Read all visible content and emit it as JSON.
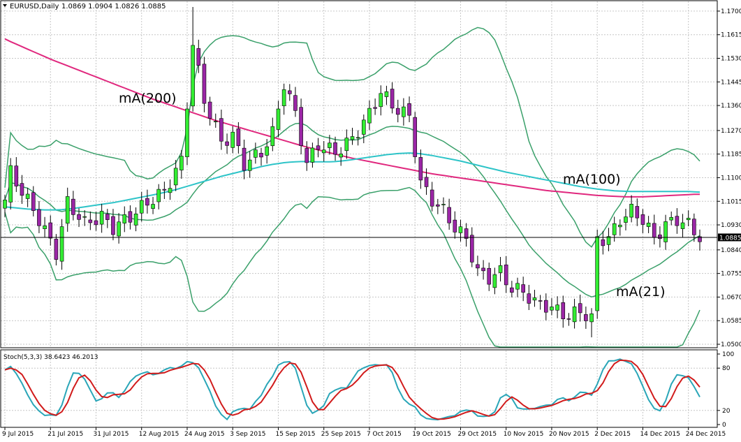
{
  "chart_header": {
    "symbol_label": "EURUSD,Daily",
    "ohlc_text": "1.0869 1.0904 1.0826 1.0885"
  },
  "colors": {
    "background": "#ffffff",
    "grid": "#c6c6c6",
    "bull_candle": "#33ee33",
    "bear_candle": "#9b26a6",
    "wick": "#000000",
    "bollinger": "#3aa06a",
    "ma100": "#2ec4c8",
    "ma200": "#e0287e",
    "stoch_main": "#2aa6b8",
    "stoch_signal": "#d11b1b",
    "current_price_line": "#000000"
  },
  "chart_data": {
    "type": "candlestick",
    "instrument": "EURUSD",
    "timeframe": "Daily",
    "price_axis_ticks": [
      1.17,
      1.1615,
      1.153,
      1.1445,
      1.136,
      1.127,
      1.1185,
      1.11,
      1.1015,
      1.093,
      1.084,
      1.0755,
      1.067,
      1.0585,
      1.05
    ],
    "price_tick_labels": [
      "1.1700",
      "1.1615",
      "1.1530",
      "1.1445",
      "1.1360",
      "1.1270",
      "1.1185",
      "1.1100",
      "1.1015",
      "1.0930",
      "1.0840",
      "1.0755",
      "1.0670",
      "1.0585",
      "1.0500"
    ],
    "ylim": [
      1.049,
      1.1735
    ],
    "current_price": 1.0885,
    "current_price_label": "1.0885",
    "date_labels": [
      "9 Jul 2015",
      "21 Jul 2015",
      "31 Jul 2015",
      "12 Aug 2015",
      "24 Aug 2015",
      "3 Sep 2015",
      "15 Sep 2015",
      "25 Sep 2015",
      "7 Oct 2015",
      "19 Oct 2015",
      "29 Oct 2015",
      "10 Nov 2015",
      "20 Nov 2015",
      "2 Dec 2015",
      "14 Dec 2015",
      "24 Dec 2015"
    ],
    "bar_dates": [
      "9 Jul 2015",
      "10 Jul 2015",
      "13 Jul 2015",
      "14 Jul 2015",
      "15 Jul 2015",
      "16 Jul 2015",
      "17 Jul 2015",
      "20 Jul 2015",
      "21 Jul 2015",
      "22 Jul 2015",
      "23 Jul 2015",
      "24 Jul 2015",
      "27 Jul 2015",
      "28 Jul 2015",
      "29 Jul 2015",
      "30 Jul 2015",
      "31 Jul 2015",
      "3 Aug 2015",
      "4 Aug 2015",
      "5 Aug 2015",
      "6 Aug 2015",
      "7 Aug 2015",
      "10 Aug 2015",
      "11 Aug 2015",
      "12 Aug 2015",
      "13 Aug 2015",
      "14 Aug 2015",
      "17 Aug 2015",
      "18 Aug 2015",
      "19 Aug 2015",
      "20 Aug 2015",
      "21 Aug 2015",
      "24 Aug 2015",
      "25 Aug 2015",
      "26 Aug 2015",
      "27 Aug 2015",
      "28 Aug 2015",
      "31 Aug 2015",
      "1 Sep 2015",
      "2 Sep 2015",
      "3 Sep 2015",
      "4 Sep 2015",
      "7 Sep 2015",
      "8 Sep 2015",
      "9 Sep 2015",
      "10 Sep 2015",
      "11 Sep 2015",
      "14 Sep 2015",
      "15 Sep 2015",
      "16 Sep 2015",
      "17 Sep 2015",
      "18 Sep 2015",
      "21 Sep 2015",
      "22 Sep 2015",
      "23 Sep 2015",
      "24 Sep 2015",
      "25 Sep 2015",
      "28 Sep 2015",
      "29 Sep 2015",
      "30 Sep 2015",
      "1 Oct 2015",
      "2 Oct 2015",
      "5 Oct 2015",
      "6 Oct 2015",
      "7 Oct 2015",
      "8 Oct 2015",
      "9 Oct 2015",
      "12 Oct 2015",
      "13 Oct 2015",
      "14 Oct 2015",
      "15 Oct 2015",
      "16 Oct 2015",
      "19 Oct 2015",
      "20 Oct 2015",
      "21 Oct 2015",
      "22 Oct 2015",
      "23 Oct 2015",
      "26 Oct 2015",
      "27 Oct 2015",
      "28 Oct 2015",
      "29 Oct 2015",
      "30 Oct 2015",
      "2 Nov 2015",
      "3 Nov 2015",
      "4 Nov 2015",
      "5 Nov 2015",
      "6 Nov 2015",
      "9 Nov 2015",
      "10 Nov 2015",
      "11 Nov 2015",
      "12 Nov 2015",
      "13 Nov 2015",
      "16 Nov 2015",
      "17 Nov 2015",
      "18 Nov 2015",
      "19 Nov 2015",
      "20 Nov 2015",
      "23 Nov 2015",
      "24 Nov 2015",
      "25 Nov 2015",
      "26 Nov 2015",
      "27 Nov 2015",
      "30 Nov 2015",
      "1 Dec 2015",
      "2 Dec 2015",
      "3 Dec 2015",
      "4 Dec 2015",
      "7 Dec 2015",
      "8 Dec 2015",
      "9 Dec 2015",
      "10 Dec 2015",
      "11 Dec 2015",
      "14 Dec 2015",
      "15 Dec 2015",
      "16 Dec 2015",
      "17 Dec 2015",
      "18 Dec 2015",
      "21 Dec 2015",
      "22 Dec 2015",
      "23 Dec 2015",
      "24 Dec 2015",
      "28 Dec 2015",
      "29 Dec 2015"
    ],
    "ma200": [
      1.16,
      1.159,
      1.1581,
      1.1572,
      1.1563,
      1.1554,
      1.1545,
      1.1536,
      1.1527,
      1.1519,
      1.1511,
      1.1503,
      1.1495,
      1.1487,
      1.1479,
      1.1471,
      1.1463,
      1.1455,
      1.1447,
      1.1439,
      1.1431,
      1.1423,
      1.1415,
      1.1407,
      1.1399,
      1.1391,
      1.1383,
      1.1376,
      1.1369,
      1.1362,
      1.1355,
      1.1348,
      1.1341,
      1.1334,
      1.1327,
      1.132,
      1.1313,
      1.1306,
      1.13,
      1.1294,
      1.1288,
      1.1282,
      1.1276,
      1.127,
      1.1264,
      1.1258,
      1.1252,
      1.1246,
      1.124,
      1.1234,
      1.1228,
      1.1222,
      1.1216,
      1.121,
      1.1205,
      1.12,
      1.1195,
      1.119,
      1.1185,
      1.118,
      1.1175,
      1.117,
      1.1166,
      1.1162,
      1.1158,
      1.1154,
      1.115,
      1.1146,
      1.1142,
      1.1138,
      1.1134,
      1.113,
      1.1126,
      1.1122,
      1.1118,
      1.1114,
      1.1111,
      1.1108,
      1.1105,
      1.1102,
      1.1099,
      1.1096,
      1.1093,
      1.109,
      1.1087,
      1.1084,
      1.1081,
      1.1078,
      1.1075,
      1.1072,
      1.1069,
      1.1066,
      1.1063,
      1.106,
      1.1057,
      1.1054,
      1.1052,
      1.105,
      1.1048,
      1.1046,
      1.1044,
      1.1042,
      1.104,
      1.1038,
      1.1036,
      1.1035,
      1.1034,
      1.1033,
      1.1032,
      1.1031,
      1.1031,
      1.1031,
      1.1031,
      1.1032,
      1.1033,
      1.1034,
      1.1035,
      1.1036,
      1.1037,
      1.1038,
      1.1039,
      1.104,
      1.104
    ],
    "ma100": [
      1.0995,
      1.0993,
      1.0991,
      1.0989,
      1.0987,
      1.0986,
      1.0985,
      1.0984,
      1.0984,
      1.0984,
      1.0985,
      1.0987,
      1.0989,
      1.0992,
      1.0995,
      1.0998,
      1.1001,
      1.1004,
      1.1007,
      1.101,
      1.1014,
      1.1018,
      1.1022,
      1.1026,
      1.103,
      1.1034,
      1.1038,
      1.1042,
      1.1047,
      1.1052,
      1.1057,
      1.1063,
      1.1069,
      1.1075,
      1.1081,
      1.1087,
      1.1093,
      1.1099,
      1.1105,
      1.111,
      1.1115,
      1.112,
      1.1125,
      1.113,
      1.1135,
      1.114,
      1.1144,
      1.1148,
      1.1151,
      1.1154,
      1.1156,
      1.1157,
      1.1158,
      1.1158,
      1.1157,
      1.1157,
      1.1157,
      1.1157,
      1.1158,
      1.116,
      1.1162,
      1.1165,
      1.1168,
      1.1171,
      1.1174,
      1.1177,
      1.118,
      1.1183,
      1.1185,
      1.1187,
      1.1188,
      1.1189,
      1.1188,
      1.1186,
      1.1183,
      1.118,
      1.1176,
      1.1172,
      1.1168,
      1.1164,
      1.116,
      1.1155,
      1.115,
      1.1145,
      1.114,
      1.1135,
      1.113,
      1.1125,
      1.112,
      1.1116,
      1.1112,
      1.1108,
      1.1104,
      1.11,
      1.1096,
      1.1092,
      1.1088,
      1.1084,
      1.108,
      1.1076,
      1.1072,
      1.1068,
      1.1065,
      1.1062,
      1.1059,
      1.1057,
      1.1055,
      1.1053,
      1.1052,
      1.1051,
      1.105,
      1.105,
      1.105,
      1.105,
      1.105,
      1.105,
      1.105,
      1.105,
      1.105,
      1.105,
      1.105,
      1.1049,
      1.1048
    ],
    "stoch_scale": [
      0,
      20,
      80,
      100
    ],
    "stoch_tick_labels": [
      "100",
      "80",
      "20",
      "0"
    ],
    "stoch_header": "Stoch(5,3,3) 38.6423 46.2013",
    "annotations": [
      "mA(200)",
      "mA(100)",
      "mA(21)"
    ],
    "legend": "none",
    "grid": true
  }
}
